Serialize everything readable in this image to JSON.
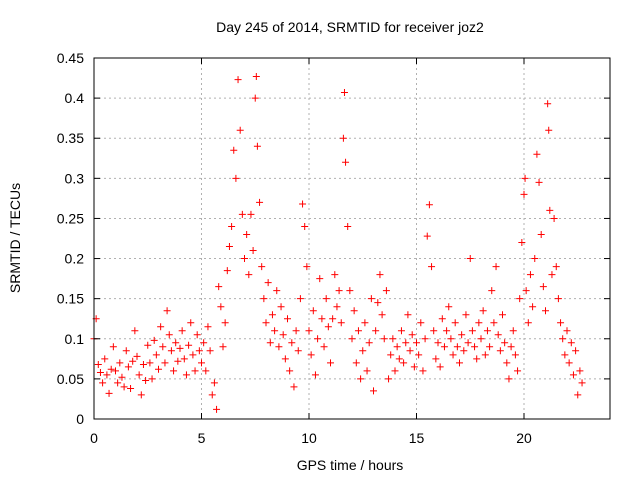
{
  "chart_data": {
    "type": "scatter",
    "title": "Day 245 of 2014, SRMTID for receiver joz2",
    "xlabel": "GPS time / hours",
    "ylabel": "SRMTID / TECUs",
    "xlim": [
      0,
      24
    ],
    "ylim": [
      0,
      0.45
    ],
    "xticks": [
      0,
      5,
      10,
      15,
      20
    ],
    "xtick_labels": [
      "0",
      "5",
      "10",
      "15",
      "20"
    ],
    "yticks": [
      0,
      0.05,
      0.1,
      0.15,
      0.2,
      0.25,
      0.3,
      0.35,
      0.4,
      0.45
    ],
    "ytick_labels": [
      "0",
      "0.05",
      "0.1",
      "0.15",
      "0.2",
      "0.25",
      "0.3",
      "0.35",
      "0.4",
      "0.45"
    ],
    "grid": true,
    "marker": "plus",
    "color": "#ff0000",
    "series": [
      {
        "name": "SRMTID",
        "points": [
          [
            0.0,
            0.1
          ],
          [
            0.1,
            0.125
          ],
          [
            0.2,
            0.068
          ],
          [
            0.3,
            0.058
          ],
          [
            0.4,
            0.045
          ],
          [
            0.5,
            0.075
          ],
          [
            0.6,
            0.055
          ],
          [
            0.7,
            0.032
          ],
          [
            0.8,
            0.062
          ],
          [
            0.9,
            0.09
          ],
          [
            1.0,
            0.06
          ],
          [
            1.1,
            0.045
          ],
          [
            1.2,
            0.07
          ],
          [
            1.3,
            0.052
          ],
          [
            1.4,
            0.04
          ],
          [
            1.5,
            0.085
          ],
          [
            1.6,
            0.065
          ],
          [
            1.7,
            0.038
          ],
          [
            1.8,
            0.072
          ],
          [
            1.9,
            0.11
          ],
          [
            2.0,
            0.078
          ],
          [
            2.1,
            0.055
          ],
          [
            2.2,
            0.03
          ],
          [
            2.3,
            0.068
          ],
          [
            2.4,
            0.048
          ],
          [
            2.5,
            0.092
          ],
          [
            2.6,
            0.07
          ],
          [
            2.7,
            0.05
          ],
          [
            2.8,
            0.098
          ],
          [
            2.9,
            0.08
          ],
          [
            3.0,
            0.062
          ],
          [
            3.1,
            0.115
          ],
          [
            3.2,
            0.09
          ],
          [
            3.3,
            0.07
          ],
          [
            3.4,
            0.135
          ],
          [
            3.5,
            0.105
          ],
          [
            3.6,
            0.085
          ],
          [
            3.7,
            0.06
          ],
          [
            3.8,
            0.095
          ],
          [
            3.9,
            0.072
          ],
          [
            4.0,
            0.088
          ],
          [
            4.1,
            0.11
          ],
          [
            4.2,
            0.075
          ],
          [
            4.3,
            0.055
          ],
          [
            4.4,
            0.092
          ],
          [
            4.5,
            0.12
          ],
          [
            4.6,
            0.08
          ],
          [
            4.7,
            0.06
          ],
          [
            4.8,
            0.105
          ],
          [
            4.9,
            0.085
          ],
          [
            5.0,
            0.07
          ],
          [
            5.1,
            0.095
          ],
          [
            5.2,
            0.06
          ],
          [
            5.3,
            0.115
          ],
          [
            5.4,
            0.085
          ],
          [
            5.5,
            0.03
          ],
          [
            5.6,
            0.045
          ],
          [
            5.7,
            0.012
          ],
          [
            5.8,
            0.165
          ],
          [
            5.9,
            0.14
          ],
          [
            6.0,
            0.09
          ],
          [
            6.1,
            0.12
          ],
          [
            6.2,
            0.185
          ],
          [
            6.3,
            0.215
          ],
          [
            6.4,
            0.24
          ],
          [
            6.5,
            0.335
          ],
          [
            6.6,
            0.3
          ],
          [
            6.7,
            0.423
          ],
          [
            6.8,
            0.36
          ],
          [
            6.9,
            0.255
          ],
          [
            7.0,
            0.2
          ],
          [
            7.1,
            0.23
          ],
          [
            7.2,
            0.18
          ],
          [
            7.3,
            0.255
          ],
          [
            7.4,
            0.21
          ],
          [
            7.5,
            0.4
          ],
          [
            7.55,
            0.427
          ],
          [
            7.6,
            0.34
          ],
          [
            7.7,
            0.27
          ],
          [
            7.8,
            0.19
          ],
          [
            7.9,
            0.15
          ],
          [
            8.0,
            0.12
          ],
          [
            8.1,
            0.17
          ],
          [
            8.2,
            0.095
          ],
          [
            8.3,
            0.13
          ],
          [
            8.4,
            0.11
          ],
          [
            8.5,
            0.16
          ],
          [
            8.6,
            0.09
          ],
          [
            8.7,
            0.14
          ],
          [
            8.8,
            0.105
          ],
          [
            8.9,
            0.075
          ],
          [
            9.0,
            0.125
          ],
          [
            9.1,
            0.06
          ],
          [
            9.2,
            0.095
          ],
          [
            9.3,
            0.04
          ],
          [
            9.4,
            0.11
          ],
          [
            9.5,
            0.085
          ],
          [
            9.6,
            0.15
          ],
          [
            9.7,
            0.268
          ],
          [
            9.8,
            0.24
          ],
          [
            9.9,
            0.19
          ],
          [
            10.0,
            0.11
          ],
          [
            10.1,
            0.08
          ],
          [
            10.2,
            0.135
          ],
          [
            10.3,
            0.055
          ],
          [
            10.4,
            0.1
          ],
          [
            10.5,
            0.175
          ],
          [
            10.6,
            0.125
          ],
          [
            10.7,
            0.09
          ],
          [
            10.8,
            0.15
          ],
          [
            10.9,
            0.115
          ],
          [
            11.0,
            0.07
          ],
          [
            11.1,
            0.125
          ],
          [
            11.2,
            0.18
          ],
          [
            11.3,
            0.14
          ],
          [
            11.4,
            0.16
          ],
          [
            11.5,
            0.12
          ],
          [
            11.6,
            0.35
          ],
          [
            11.65,
            0.407
          ],
          [
            11.7,
            0.32
          ],
          [
            11.8,
            0.24
          ],
          [
            11.9,
            0.16
          ],
          [
            12.0,
            0.1
          ],
          [
            12.1,
            0.135
          ],
          [
            12.2,
            0.07
          ],
          [
            12.3,
            0.11
          ],
          [
            12.4,
            0.05
          ],
          [
            12.5,
            0.085
          ],
          [
            12.6,
            0.12
          ],
          [
            12.7,
            0.06
          ],
          [
            12.8,
            0.095
          ],
          [
            12.9,
            0.15
          ],
          [
            13.0,
            0.035
          ],
          [
            13.1,
            0.11
          ],
          [
            13.2,
            0.145
          ],
          [
            13.3,
            0.18
          ],
          [
            13.4,
            0.13
          ],
          [
            13.5,
            0.1
          ],
          [
            13.6,
            0.16
          ],
          [
            13.7,
            0.05
          ],
          [
            13.8,
            0.08
          ],
          [
            13.9,
            0.1
          ],
          [
            14.0,
            0.06
          ],
          [
            14.1,
            0.09
          ],
          [
            14.2,
            0.075
          ],
          [
            14.3,
            0.11
          ],
          [
            14.4,
            0.07
          ],
          [
            14.5,
            0.095
          ],
          [
            14.6,
            0.13
          ],
          [
            14.7,
            0.085
          ],
          [
            14.8,
            0.105
          ],
          [
            14.9,
            0.065
          ],
          [
            15.0,
            0.095
          ],
          [
            15.1,
            0.08
          ],
          [
            15.2,
            0.12
          ],
          [
            15.3,
            0.06
          ],
          [
            15.4,
            0.1
          ],
          [
            15.5,
            0.228
          ],
          [
            15.6,
            0.267
          ],
          [
            15.7,
            0.19
          ],
          [
            15.8,
            0.11
          ],
          [
            15.9,
            0.075
          ],
          [
            16.0,
            0.095
          ],
          [
            16.1,
            0.065
          ],
          [
            16.2,
            0.125
          ],
          [
            16.3,
            0.09
          ],
          [
            16.4,
            0.11
          ],
          [
            16.5,
            0.14
          ],
          [
            16.6,
            0.1
          ],
          [
            16.7,
            0.08
          ],
          [
            16.8,
            0.12
          ],
          [
            16.9,
            0.09
          ],
          [
            17.0,
            0.07
          ],
          [
            17.1,
            0.105
          ],
          [
            17.2,
            0.085
          ],
          [
            17.3,
            0.13
          ],
          [
            17.4,
            0.095
          ],
          [
            17.5,
            0.2
          ],
          [
            17.6,
            0.11
          ],
          [
            17.7,
            0.09
          ],
          [
            17.8,
            0.075
          ],
          [
            17.9,
            0.12
          ],
          [
            18.0,
            0.1
          ],
          [
            18.1,
            0.135
          ],
          [
            18.2,
            0.08
          ],
          [
            18.3,
            0.11
          ],
          [
            18.4,
            0.09
          ],
          [
            18.5,
            0.16
          ],
          [
            18.6,
            0.12
          ],
          [
            18.7,
            0.19
          ],
          [
            18.8,
            0.105
          ],
          [
            18.9,
            0.085
          ],
          [
            19.0,
            0.13
          ],
          [
            19.1,
            0.095
          ],
          [
            19.2,
            0.07
          ],
          [
            19.3,
            0.05
          ],
          [
            19.4,
            0.09
          ],
          [
            19.5,
            0.11
          ],
          [
            19.6,
            0.08
          ],
          [
            19.7,
            0.06
          ],
          [
            19.8,
            0.15
          ],
          [
            19.9,
            0.22
          ],
          [
            20.0,
            0.28
          ],
          [
            20.05,
            0.3
          ],
          [
            20.1,
            0.16
          ],
          [
            20.2,
            0.12
          ],
          [
            20.3,
            0.18
          ],
          [
            20.4,
            0.14
          ],
          [
            20.5,
            0.2
          ],
          [
            20.6,
            0.33
          ],
          [
            20.7,
            0.295
          ],
          [
            20.8,
            0.23
          ],
          [
            20.9,
            0.165
          ],
          [
            21.0,
            0.135
          ],
          [
            21.1,
            0.393
          ],
          [
            21.15,
            0.36
          ],
          [
            21.2,
            0.26
          ],
          [
            21.3,
            0.18
          ],
          [
            21.4,
            0.25
          ],
          [
            21.5,
            0.19
          ],
          [
            21.6,
            0.15
          ],
          [
            21.7,
            0.12
          ],
          [
            21.8,
            0.1
          ],
          [
            21.9,
            0.08
          ],
          [
            22.0,
            0.11
          ],
          [
            22.1,
            0.07
          ],
          [
            22.2,
            0.095
          ],
          [
            22.3,
            0.055
          ],
          [
            22.4,
            0.085
          ],
          [
            22.5,
            0.03
          ],
          [
            22.6,
            0.06
          ],
          [
            22.7,
            0.045
          ]
        ]
      }
    ]
  }
}
